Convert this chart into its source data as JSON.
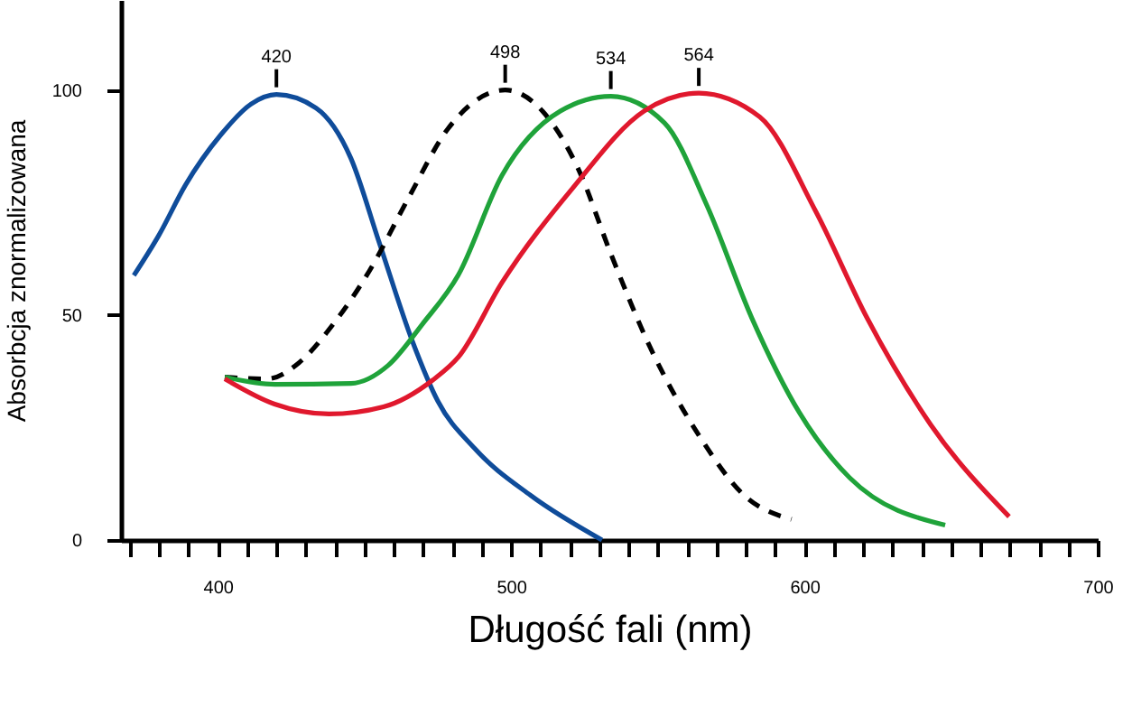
{
  "chart_data": {
    "type": "line",
    "xlabel": "Długość fali (nm)",
    "ylabel": "Absorbcja znormalizowana",
    "xlim": [
      367,
      700
    ],
    "ylim": [
      0,
      120
    ],
    "xticks": [
      {
        "value": 370,
        "label": null
      },
      {
        "value": 380,
        "label": null
      },
      {
        "value": 390,
        "label": null
      },
      400,
      {
        "value": 410,
        "label": null
      },
      {
        "value": 420,
        "label": null
      },
      {
        "value": 430,
        "label": null
      },
      {
        "value": 440,
        "label": null
      },
      {
        "value": 450,
        "label": null
      },
      {
        "value": 460,
        "label": null
      },
      {
        "value": 470,
        "label": null
      },
      {
        "value": 480,
        "label": null
      },
      {
        "value": 490,
        "label": null
      },
      500,
      {
        "value": 510,
        "label": null
      },
      {
        "value": 520,
        "label": null
      },
      {
        "value": 530,
        "label": null
      },
      {
        "value": 540,
        "label": null
      },
      {
        "value": 550,
        "label": null
      },
      {
        "value": 560,
        "label": null
      },
      {
        "value": 570,
        "label": null
      },
      {
        "value": 580,
        "label": null
      },
      {
        "value": 590,
        "label": null
      },
      600,
      {
        "value": 610,
        "label": null
      },
      {
        "value": 620,
        "label": null
      },
      {
        "value": 630,
        "label": null
      },
      {
        "value": 640,
        "label": null
      },
      {
        "value": 650,
        "label": null
      },
      {
        "value": 660,
        "label": null
      },
      {
        "value": 670,
        "label": null
      },
      {
        "value": 680,
        "label": null
      },
      {
        "value": 690,
        "label": null
      },
      700
    ],
    "yticks": [
      0,
      50,
      100
    ],
    "grid": false,
    "legend": false,
    "marker": "none",
    "series": [
      {
        "color": "#0f4c9a",
        "line_style": "solid",
        "x": [
          371.4,
          379.9,
          389,
          401.1,
          411.4,
          420,
          433.5,
          445.4,
          454.9,
          466.4,
          475,
          487.5,
          506.7,
          531
        ],
        "values": [
          58.8,
          67.7,
          78.9,
          90.1,
          96.9,
          99,
          96,
          84.8,
          66.4,
          44.1,
          30.9,
          20.4,
          9.9,
          0
        ]
      },
      {
        "color": "#000000",
        "line_style": "dashed",
        "x": [
          402.4,
          416.7,
          427.7,
          439.4,
          451.7,
          464.7,
          478.5,
          498,
          510.7,
          523.1,
          533.9,
          547.5,
          564.3,
          579.5,
          595.6
        ],
        "values": [
          36.2,
          35.8,
          39.4,
          48,
          59.8,
          75.6,
          91.4,
          100,
          95.3,
          82.2,
          63.8,
          42.7,
          23,
          9.9,
          4.6
        ]
      },
      {
        "color": "#1fa33a",
        "line_style": "solid",
        "x": [
          402.4,
          419.4,
          445.4,
          458.1,
          469.8,
          482.1,
          496.9,
          516.8,
          534,
          552.3,
          566.8,
          582.1,
          598.3,
          615.5,
          648
        ],
        "values": [
          36.2,
          34.6,
          34.8,
          38.8,
          48,
          59,
          81,
          95.3,
          98.6,
          92.7,
          74.3,
          49.3,
          28.3,
          13.8,
          3.3
        ]
      },
      {
        "color": "#e0182d",
        "line_style": "solid",
        "x": [
          402.4,
          419.4,
          437.9,
          456.5,
          473.2,
          482.1,
          496.9,
          521,
          545.3,
          564,
          584.8,
          603.9,
          621.4,
          643.1,
          669.8
        ],
        "values": [
          35.8,
          30.2,
          28,
          29.6,
          35.5,
          40.7,
          57.2,
          78.2,
          95.3,
          99.3,
          94,
          73,
          49.3,
          25.6,
          5.2
        ]
      }
    ],
    "annotations": [
      {
        "text": "420",
        "x": 420,
        "y": 99
      },
      {
        "text": "498",
        "x": 498,
        "y": 100
      },
      {
        "text": "534",
        "x": 534,
        "y": 98.6
      },
      {
        "text": "564",
        "x": 564,
        "y": 99.3
      }
    ]
  }
}
